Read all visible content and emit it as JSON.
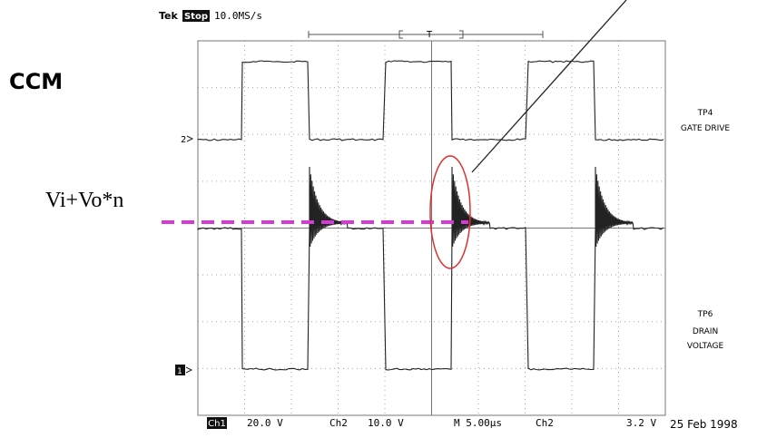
{
  "header": {
    "brand": "Tek",
    "status": "Stop",
    "sample_rate": "10.0MS/s",
    "trigger_marker": "T"
  },
  "annotations": {
    "mode": "CCM",
    "level": "Vi+Vo*n"
  },
  "channels": [
    {
      "marker": "2",
      "labels": [
        "TP4",
        "GATE DRIVE"
      ]
    },
    {
      "marker": "1",
      "labels": [
        "TP6",
        "DRAIN",
        "VOLTAGE"
      ]
    }
  ],
  "footer": {
    "ch1": "Ch1",
    "ch1_scale": "20.0 V",
    "ch2": "Ch2",
    "ch2_scale": "10.0 V",
    "timebase": "M 5.00µs",
    "trigger_source": "Ch2",
    "trigger_level": "3.2 V",
    "date": "25 Feb 1998"
  }
}
